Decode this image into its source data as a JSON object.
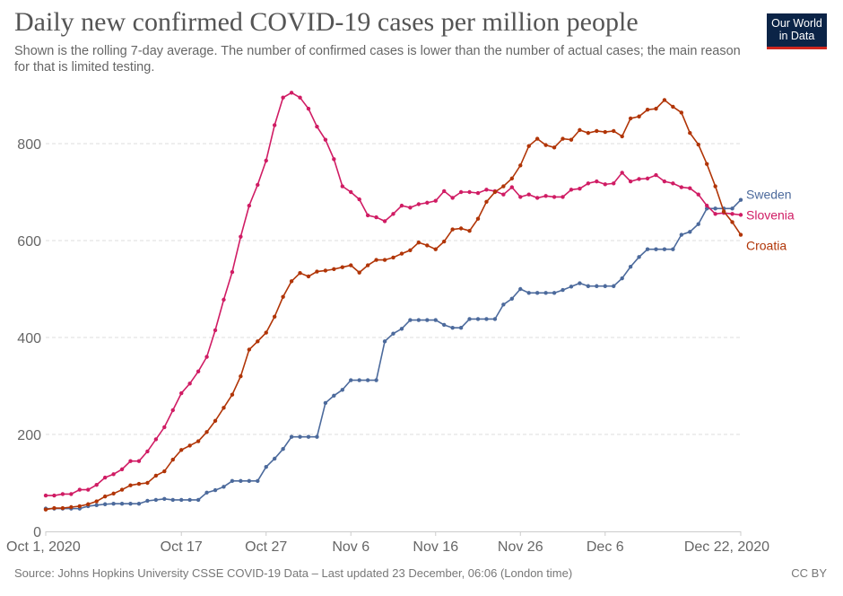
{
  "title": "Daily new confirmed COVID-19 cases per million people",
  "subtitle": "Shown is the rolling 7-day average. The number of confirmed cases is lower than the number of actual cases; the main reason for that is limited testing.",
  "logo": "Our World in Data",
  "source": "Source: Johns Hopkins University CSSE COVID-19 Data – Last updated 23 December, 06:06 (London time)",
  "license": "CC BY",
  "chart_data": {
    "type": "line",
    "ylim": [
      0,
      900
    ],
    "yticks": [
      0,
      200,
      400,
      600,
      800
    ],
    "grid": true,
    "legend": "right, inline labels at line ends",
    "xtick_labels": [
      {
        "date": "2020-10-01",
        "label": "Oct 1, 2020"
      },
      {
        "date": "2020-10-17",
        "label": "Oct 17"
      },
      {
        "date": "2020-10-27",
        "label": "Oct 27"
      },
      {
        "date": "2020-11-06",
        "label": "Nov 6"
      },
      {
        "date": "2020-11-16",
        "label": "Nov 16"
      },
      {
        "date": "2020-11-26",
        "label": "Nov 26"
      },
      {
        "date": "2020-12-06",
        "label": "Dec 6"
      },
      {
        "date": "2020-12-22",
        "label": "Dec 22, 2020"
      }
    ],
    "x": [
      "2020-10-01",
      "2020-10-02",
      "2020-10-03",
      "2020-10-04",
      "2020-10-05",
      "2020-10-06",
      "2020-10-07",
      "2020-10-08",
      "2020-10-09",
      "2020-10-10",
      "2020-10-11",
      "2020-10-12",
      "2020-10-13",
      "2020-10-14",
      "2020-10-15",
      "2020-10-16",
      "2020-10-17",
      "2020-10-18",
      "2020-10-19",
      "2020-10-20",
      "2020-10-21",
      "2020-10-22",
      "2020-10-23",
      "2020-10-24",
      "2020-10-25",
      "2020-10-26",
      "2020-10-27",
      "2020-10-28",
      "2020-10-29",
      "2020-10-30",
      "2020-10-31",
      "2020-11-01",
      "2020-11-02",
      "2020-11-03",
      "2020-11-04",
      "2020-11-05",
      "2020-11-06",
      "2020-11-07",
      "2020-11-08",
      "2020-11-09",
      "2020-11-10",
      "2020-11-11",
      "2020-11-12",
      "2020-11-13",
      "2020-11-14",
      "2020-11-15",
      "2020-11-16",
      "2020-11-17",
      "2020-11-18",
      "2020-11-19",
      "2020-11-20",
      "2020-11-21",
      "2020-11-22",
      "2020-11-23",
      "2020-11-24",
      "2020-11-25",
      "2020-11-26",
      "2020-11-27",
      "2020-11-28",
      "2020-11-29",
      "2020-11-30",
      "2020-12-01",
      "2020-12-02",
      "2020-12-03",
      "2020-12-04",
      "2020-12-05",
      "2020-12-06",
      "2020-12-07",
      "2020-12-08",
      "2020-12-09",
      "2020-12-10",
      "2020-12-11",
      "2020-12-12",
      "2020-12-13",
      "2020-12-14",
      "2020-12-15",
      "2020-12-16",
      "2020-12-17",
      "2020-12-18",
      "2020-12-19",
      "2020-12-20",
      "2020-12-21",
      "2020-12-22"
    ],
    "series": [
      {
        "name": "Sweden",
        "color": "#4c6a9c",
        "values": [
          47,
          47,
          47,
          47,
          47,
          52,
          54,
          56,
          57,
          57,
          57,
          57,
          63,
          65,
          67,
          65,
          65,
          65,
          65,
          80,
          85,
          92,
          104,
          104,
          104,
          104,
          133,
          150,
          170,
          195,
          195,
          195,
          195,
          265,
          280,
          292,
          312,
          312,
          312,
          312,
          392,
          408,
          418,
          436,
          436,
          436,
          436,
          426,
          420,
          420,
          438,
          438,
          438,
          438,
          468,
          480,
          500,
          492,
          492,
          492,
          492,
          498,
          505,
          512,
          506,
          506,
          506,
          506,
          522,
          546,
          566,
          582,
          582,
          582,
          582,
          612,
          618,
          634,
          666,
          666,
          666,
          666,
          684
        ]
      },
      {
        "name": "Slovenia",
        "color": "#d01c64",
        "values": [
          74,
          74,
          77,
          77,
          86,
          86,
          96,
          111,
          118,
          128,
          145,
          145,
          165,
          190,
          215,
          250,
          285,
          305,
          330,
          360,
          415,
          478,
          535,
          608,
          672,
          715,
          765,
          838,
          895,
          905,
          895,
          872,
          835,
          808,
          768,
          712,
          700,
          685,
          652,
          648,
          640,
          655,
          672,
          668,
          675,
          678,
          682,
          702,
          688,
          700,
          700,
          698,
          705,
          702,
          695,
          710,
          690,
          695,
          688,
          692,
          690,
          690,
          705,
          707,
          718,
          722,
          716,
          718,
          740,
          722,
          727,
          728,
          735,
          722,
          718,
          710,
          708,
          695,
          672,
          655,
          657,
          655,
          653
        ]
      },
      {
        "name": "Croatia",
        "color": "#b13507",
        "values": [
          45,
          48,
          48,
          50,
          52,
          56,
          62,
          72,
          78,
          86,
          95,
          98,
          100,
          115,
          124,
          148,
          168,
          177,
          186,
          205,
          228,
          255,
          282,
          320,
          375,
          392,
          410,
          443,
          484,
          516,
          533,
          526,
          536,
          538,
          541,
          545,
          549,
          534,
          549,
          560,
          560,
          565,
          573,
          580,
          596,
          590,
          582,
          598,
          623,
          625,
          620,
          645,
          680,
          700,
          712,
          728,
          755,
          795,
          810,
          797,
          792,
          810,
          808,
          828,
          822,
          826,
          824,
          826,
          815,
          852,
          856,
          870,
          872,
          890,
          876,
          864,
          822,
          798,
          758,
          712,
          660,
          638,
          612
        ]
      }
    ]
  }
}
